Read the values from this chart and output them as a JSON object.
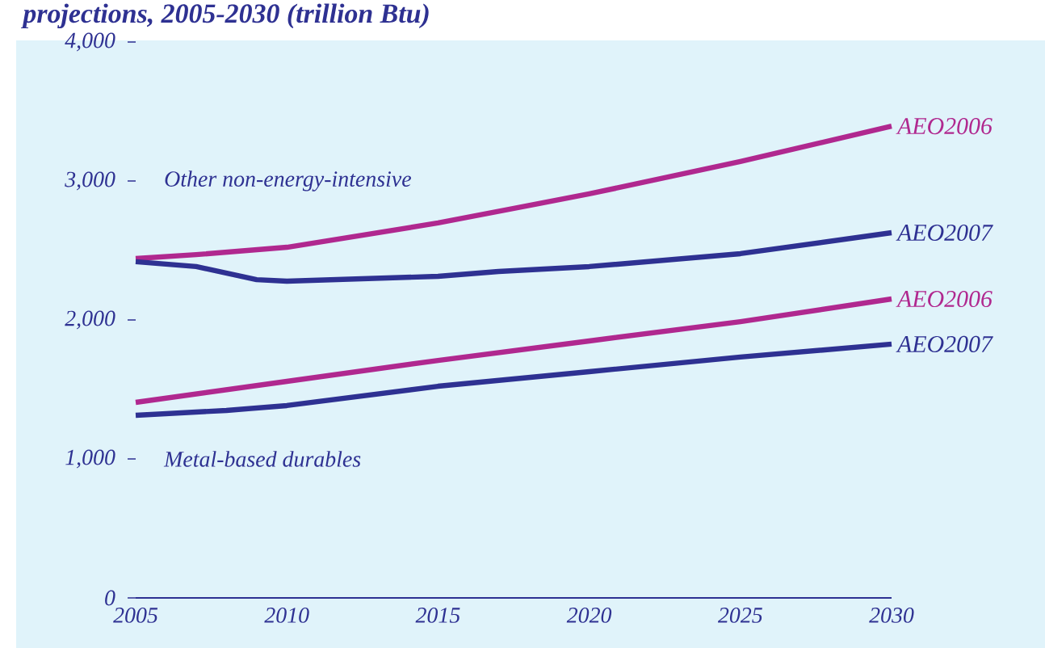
{
  "chart_data": {
    "type": "line",
    "title": "projections, 2005-2030 (trillion Btu)",
    "annotations": [
      "Other non-energy-intensive",
      "Metal-based durables"
    ],
    "series": [
      {
        "name": "AEO2006",
        "color": "#b0288f",
        "x": [
          2005,
          2007,
          2010,
          2015,
          2020,
          2025,
          2030
        ],
        "values": [
          2442,
          2470,
          2523,
          2698,
          2907,
          3140,
          3395
        ]
      },
      {
        "name": "AEO2007",
        "color": "#2e3192",
        "x": [
          2005,
          2007,
          2009,
          2010,
          2015,
          2017,
          2020,
          2025,
          2030
        ],
        "values": [
          2419,
          2384,
          2290,
          2279,
          2314,
          2349,
          2384,
          2477,
          2628
        ]
      },
      {
        "name": "AEO2006",
        "color": "#b0288f",
        "x": [
          2005,
          2010,
          2015,
          2020,
          2025,
          2030
        ],
        "values": [
          1407,
          1558,
          1709,
          1849,
          1988,
          2151
        ]
      },
      {
        "name": "AEO2007",
        "color": "#2e3192",
        "x": [
          2005,
          2008,
          2010,
          2015,
          2020,
          2025,
          2030
        ],
        "values": [
          1314,
          1349,
          1384,
          1523,
          1628,
          1733,
          1826
        ]
      }
    ],
    "xlim": [
      2005,
      2030
    ],
    "xticks": [
      2005,
      2010,
      2015,
      2020,
      2025,
      2030
    ],
    "ylim": [
      0,
      4000
    ],
    "yticks": [
      0,
      {
        "value": 1000,
        "label": "1,000"
      },
      {
        "value": 2000,
        "label": "2,000"
      },
      {
        "value": 3000,
        "label": "3,000"
      },
      {
        "value": 4000,
        "label": "4,000"
      }
    ],
    "grid": false,
    "legend": false,
    "marker": "none",
    "line_style": "solid"
  }
}
